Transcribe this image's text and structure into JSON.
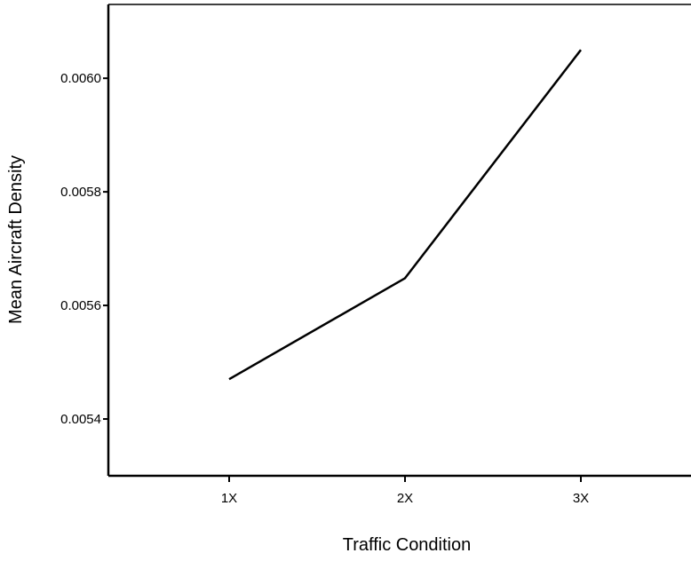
{
  "chart_data": {
    "type": "line",
    "title": "",
    "xlabel": "Traffic Condition",
    "ylabel": "Mean Aircraft Density",
    "categories": [
      "1X",
      "2X",
      "3X"
    ],
    "series": [
      {
        "values": [
          0.00547,
          0.005648,
          0.00605
        ]
      }
    ],
    "yticks": [
      0.0054,
      0.0056,
      0.0058,
      0.006
    ],
    "ytick_labels": [
      "0.0054",
      "0.0056",
      "0.0058",
      "0.0060"
    ],
    "ylim": [
      0.0053,
      0.00613
    ],
    "grid": false,
    "legend": "none",
    "colors": {
      "line": "#000000",
      "axis": "#000000"
    }
  }
}
